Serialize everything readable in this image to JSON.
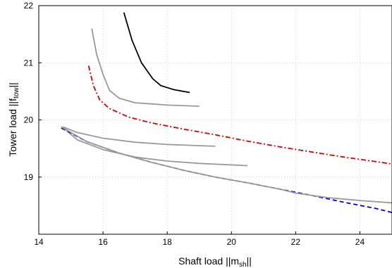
{
  "chart_data": {
    "type": "line",
    "xlabel_main": "Shaft load ||m",
    "xlabel_sub": "sh",
    "xlabel_end": "||",
    "ylabel_main": "Tower load ||f",
    "ylabel_sub": "tow",
    "ylabel_end": "||",
    "xlim": [
      14,
      25
    ],
    "ylim": [
      18,
      22
    ],
    "xticks": [
      "14",
      "16",
      "18",
      "20",
      "22",
      "24"
    ],
    "yticks": [
      "19",
      "20",
      "21",
      "22"
    ],
    "grid": true,
    "legend": "none",
    "series": [
      {
        "color": "#000000",
        "dash": "solid",
        "x": [
          16.65,
          16.9,
          17.2,
          17.55,
          17.8,
          18.2,
          18.7
        ],
        "y": [
          21.88,
          21.4,
          21.0,
          20.72,
          20.6,
          20.53,
          20.48
        ]
      },
      {
        "color": "#999999",
        "dash": "solid",
        "x": [
          15.65,
          15.8,
          16.0,
          16.2,
          16.5,
          17.0,
          17.5,
          18.0,
          19.0
        ],
        "y": [
          21.6,
          21.15,
          20.8,
          20.52,
          20.38,
          20.3,
          20.28,
          20.26,
          20.24
        ]
      },
      {
        "color": "#dd0000",
        "dash": "dashdot",
        "x": [
          15.55,
          15.7,
          15.9,
          16.2,
          16.8,
          17.5,
          18.5,
          19.5,
          20.5,
          21.5,
          22.5,
          23.5,
          24.5,
          25.0
        ],
        "y": [
          20.95,
          20.6,
          20.35,
          20.2,
          20.05,
          19.95,
          19.84,
          19.74,
          19.63,
          19.53,
          19.44,
          19.35,
          19.27,
          19.23
        ]
      },
      {
        "color": "#999999",
        "dash": "solid",
        "x": [
          14.75,
          15.2,
          16.0,
          17.0,
          18.0,
          19.0,
          19.5
        ],
        "y": [
          19.88,
          19.78,
          19.68,
          19.61,
          19.57,
          19.55,
          19.54
        ]
      },
      {
        "color": "#999999",
        "dash": "solid",
        "x": [
          14.75,
          15.2,
          16.0,
          17.0,
          18.0,
          19.0,
          20.5
        ],
        "y": [
          19.87,
          19.65,
          19.48,
          19.35,
          19.28,
          19.24,
          19.2
        ]
      },
      {
        "color": "#0000dd",
        "dash": "dashed",
        "x": [
          14.7,
          15.5,
          16.5,
          17.5,
          18.5,
          19.5,
          20.5,
          21.5,
          22.5,
          23.5,
          24.5,
          25.0
        ],
        "y": [
          19.86,
          19.62,
          19.42,
          19.26,
          19.12,
          19.0,
          18.9,
          18.79,
          18.68,
          18.56,
          18.45,
          18.38
        ]
      },
      {
        "color": "#999999",
        "dash": "solid",
        "x": [
          14.7,
          15.5,
          16.5,
          17.5,
          18.5,
          19.5,
          20.5,
          21.5,
          22.0,
          23.0,
          24.0,
          25.0
        ],
        "y": [
          19.88,
          19.62,
          19.42,
          19.26,
          19.12,
          19.0,
          18.9,
          18.79,
          18.72,
          18.64,
          18.59,
          18.55
        ]
      }
    ]
  }
}
